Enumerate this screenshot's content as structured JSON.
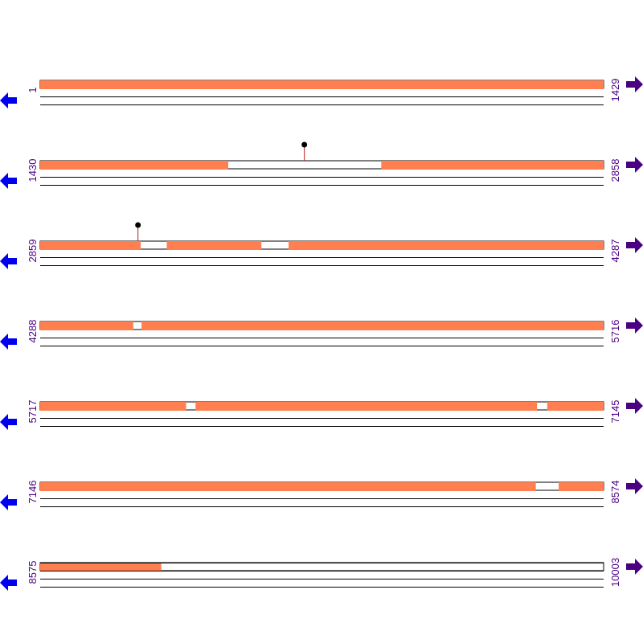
{
  "colors": {
    "segment_fill": "#ff7f50",
    "line": "#000000",
    "left_arrow": "#0000ee",
    "right_arrow": "#4b0082",
    "pin_stem": "#b22222",
    "pin_head": "#000000"
  },
  "icons": {
    "left": "left-arrow-icon",
    "right": "right-arrow-icon"
  },
  "rows": [
    {
      "start": "1",
      "end": "1429",
      "s": 1,
      "e": 1429,
      "coverage": [
        [
          1,
          1429
        ]
      ],
      "pins": [],
      "partial": false
    },
    {
      "start": "1430",
      "end": "2858",
      "s": 1430,
      "e": 2858,
      "coverage": [
        [
          1430,
          1906
        ],
        [
          2295,
          2858
        ]
      ],
      "pins": [
        2100
      ],
      "partial": false
    },
    {
      "start": "2859",
      "end": "4287",
      "s": 2859,
      "e": 4287,
      "coverage": [
        [
          2859,
          3113
        ],
        [
          3180,
          3419
        ],
        [
          3489,
          4287
        ]
      ],
      "pins": [
        3107
      ],
      "partial": false
    },
    {
      "start": "4288",
      "end": "5716",
      "s": 4288,
      "e": 5716,
      "coverage": [
        [
          4288,
          4523
        ],
        [
          4545,
          5716
        ]
      ],
      "pins": [],
      "partial": false
    },
    {
      "start": "5717",
      "end": "7145",
      "s": 5717,
      "e": 7145,
      "coverage": [
        [
          5717,
          6086
        ],
        [
          6111,
          6976
        ],
        [
          7003,
          7145
        ]
      ],
      "pins": [],
      "partial": false
    },
    {
      "start": "7146",
      "end": "8574",
      "s": 7146,
      "e": 8574,
      "coverage": [
        [
          7146,
          8402
        ],
        [
          8461,
          8574
        ]
      ],
      "pins": [],
      "partial": false
    },
    {
      "start": "8575",
      "end": "10003",
      "s": 8575,
      "e": 10003,
      "coverage": [
        [
          8575,
          8881
        ]
      ],
      "pins": [],
      "partial": true
    }
  ]
}
